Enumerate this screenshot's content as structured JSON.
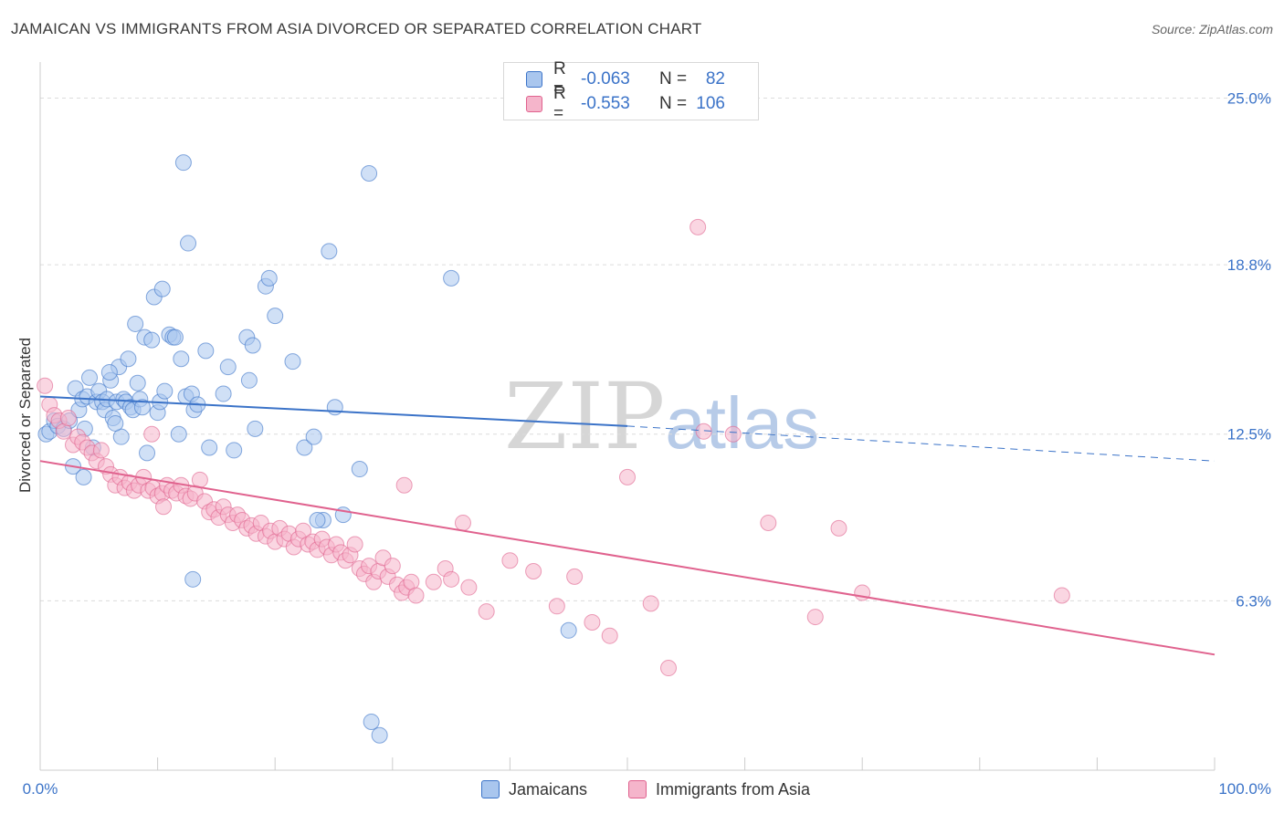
{
  "header": {
    "title": "JAMAICAN VS IMMIGRANTS FROM ASIA DIVORCED OR SEPARATED CORRELATION CHART",
    "source": "Source: ZipAtlas.com"
  },
  "watermark": {
    "zip": "ZIP",
    "atlas": "atlas"
  },
  "legend": {
    "rows": [
      {
        "r_label": "R =",
        "r_value": "-0.063",
        "n_label": "N =",
        "n_value": "82"
      },
      {
        "r_label": "R =",
        "r_value": "-0.553",
        "n_label": "N =",
        "n_value": "106"
      }
    ]
  },
  "bottom_legend": {
    "series1": "Jamaicans",
    "series2": "Immigrants from Asia"
  },
  "colors": {
    "blue": "#3b73c8",
    "blue_fill": "#a9c6ee",
    "pink": "#e0628e",
    "pink_fill": "#f5b5cb",
    "grid": "#dddddd"
  },
  "chart_data": {
    "type": "scatter",
    "title": "JAMAICAN VS IMMIGRANTS FROM ASIA DIVORCED OR SEPARATED CORRELATION CHART",
    "xlabel": "",
    "ylabel": "Divorced or Separated",
    "xlim": [
      0,
      100
    ],
    "ylim": [
      0,
      26.0
    ],
    "x_tick_labels": [
      "0.0%",
      "100.0%"
    ],
    "y_ticks": [
      6.3,
      12.5,
      18.8,
      25.0
    ],
    "y_tick_labels": [
      "6.3%",
      "12.5%",
      "18.8%",
      "25.0%"
    ],
    "grid": "horizontal dashed",
    "legend_position": "top-center",
    "series": [
      {
        "name": "Jamaicans",
        "color": "#3b73c8",
        "trend": {
          "x0": 0,
          "y0": 13.9,
          "x1": 50,
          "y1": 12.8,
          "x_end": 100,
          "y_end": 11.5
        },
        "points": [
          [
            0.5,
            12.5
          ],
          [
            0.8,
            12.6
          ],
          [
            1.2,
            13.0
          ],
          [
            1.5,
            12.8
          ],
          [
            2.0,
            12.7
          ],
          [
            2.5,
            13.0
          ],
          [
            2.8,
            11.3
          ],
          [
            3.0,
            14.2
          ],
          [
            3.3,
            13.4
          ],
          [
            3.6,
            13.8
          ],
          [
            3.7,
            10.9
          ],
          [
            4.0,
            13.9
          ],
          [
            4.2,
            14.6
          ],
          [
            4.5,
            12.0
          ],
          [
            4.8,
            13.7
          ],
          [
            5.0,
            14.1
          ],
          [
            5.3,
            13.7
          ],
          [
            5.5,
            13.4
          ],
          [
            5.7,
            13.8
          ],
          [
            6.0,
            14.5
          ],
          [
            6.2,
            13.1
          ],
          [
            6.5,
            13.7
          ],
          [
            6.7,
            15.0
          ],
          [
            6.9,
            12.4
          ],
          [
            7.1,
            13.8
          ],
          [
            7.3,
            13.7
          ],
          [
            7.5,
            15.3
          ],
          [
            7.7,
            13.5
          ],
          [
            7.9,
            13.4
          ],
          [
            8.1,
            16.6
          ],
          [
            8.3,
            14.4
          ],
          [
            8.5,
            13.8
          ],
          [
            8.7,
            13.5
          ],
          [
            8.9,
            16.1
          ],
          [
            9.1,
            11.8
          ],
          [
            9.5,
            16.0
          ],
          [
            9.7,
            17.6
          ],
          [
            10.0,
            13.3
          ],
          [
            10.2,
            13.7
          ],
          [
            10.4,
            17.9
          ],
          [
            10.6,
            14.1
          ],
          [
            11.0,
            16.2
          ],
          [
            11.3,
            16.1
          ],
          [
            11.8,
            12.5
          ],
          [
            12.0,
            15.3
          ],
          [
            12.4,
            13.9
          ],
          [
            12.6,
            19.6
          ],
          [
            12.9,
            14.0
          ],
          [
            13.1,
            13.4
          ],
          [
            13.4,
            13.6
          ],
          [
            14.1,
            15.6
          ],
          [
            14.4,
            12.0
          ],
          [
            15.6,
            14.0
          ],
          [
            16.0,
            15.0
          ],
          [
            16.5,
            11.9
          ],
          [
            17.6,
            16.1
          ],
          [
            17.8,
            14.5
          ],
          [
            18.1,
            15.8
          ],
          [
            18.3,
            12.7
          ],
          [
            19.2,
            18.0
          ],
          [
            19.5,
            18.3
          ],
          [
            20.0,
            16.9
          ],
          [
            21.5,
            15.2
          ],
          [
            22.5,
            12.0
          ],
          [
            23.3,
            12.4
          ],
          [
            24.1,
            9.3
          ],
          [
            24.6,
            19.3
          ],
          [
            25.1,
            13.5
          ],
          [
            23.6,
            9.3
          ],
          [
            25.8,
            9.5
          ],
          [
            27.2,
            11.2
          ],
          [
            28.2,
            1.8
          ],
          [
            28.9,
            1.3
          ],
          [
            12.2,
            22.6
          ],
          [
            28.0,
            22.2
          ],
          [
            35.0,
            18.3
          ],
          [
            13.0,
            7.1
          ],
          [
            11.5,
            16.1
          ],
          [
            45.0,
            5.2
          ],
          [
            3.8,
            12.7
          ],
          [
            5.9,
            14.8
          ],
          [
            6.4,
            12.9
          ]
        ]
      },
      {
        "name": "Immigrants from Asia",
        "color": "#e0628e",
        "trend": {
          "x0": 0,
          "y0": 11.5,
          "x1": 100,
          "y1": 4.3
        },
        "points": [
          [
            0.4,
            14.3
          ],
          [
            0.8,
            13.6
          ],
          [
            1.2,
            13.2
          ],
          [
            1.6,
            13.0
          ],
          [
            2.0,
            12.6
          ],
          [
            2.4,
            13.1
          ],
          [
            2.8,
            12.1
          ],
          [
            3.2,
            12.4
          ],
          [
            3.6,
            12.2
          ],
          [
            4.0,
            12.0
          ],
          [
            4.4,
            11.8
          ],
          [
            4.8,
            11.5
          ],
          [
            5.2,
            11.9
          ],
          [
            5.6,
            11.3
          ],
          [
            6.0,
            11.0
          ],
          [
            6.4,
            10.6
          ],
          [
            6.8,
            10.9
          ],
          [
            7.2,
            10.5
          ],
          [
            7.6,
            10.7
          ],
          [
            8.0,
            10.4
          ],
          [
            8.4,
            10.6
          ],
          [
            8.8,
            10.9
          ],
          [
            9.2,
            10.4
          ],
          [
            9.6,
            10.5
          ],
          [
            10.0,
            10.2
          ],
          [
            10.4,
            10.3
          ],
          [
            10.8,
            10.6
          ],
          [
            11.2,
            10.4
          ],
          [
            11.6,
            10.3
          ],
          [
            12.0,
            10.6
          ],
          [
            12.4,
            10.2
          ],
          [
            12.8,
            10.1
          ],
          [
            13.2,
            10.3
          ],
          [
            13.6,
            10.8
          ],
          [
            14.0,
            10.0
          ],
          [
            14.4,
            9.6
          ],
          [
            14.8,
            9.7
          ],
          [
            15.2,
            9.4
          ],
          [
            15.6,
            9.8
          ],
          [
            16.0,
            9.5
          ],
          [
            16.4,
            9.2
          ],
          [
            16.8,
            9.5
          ],
          [
            17.2,
            9.3
          ],
          [
            17.6,
            9.0
          ],
          [
            18.0,
            9.1
          ],
          [
            18.4,
            8.8
          ],
          [
            18.8,
            9.2
          ],
          [
            19.2,
            8.7
          ],
          [
            19.6,
            8.9
          ],
          [
            20.0,
            8.5
          ],
          [
            20.4,
            9.0
          ],
          [
            20.8,
            8.6
          ],
          [
            21.2,
            8.8
          ],
          [
            21.6,
            8.3
          ],
          [
            22.0,
            8.6
          ],
          [
            22.4,
            8.9
          ],
          [
            22.8,
            8.4
          ],
          [
            23.2,
            8.5
          ],
          [
            23.6,
            8.2
          ],
          [
            24.0,
            8.6
          ],
          [
            24.4,
            8.3
          ],
          [
            24.8,
            8.0
          ],
          [
            25.2,
            8.4
          ],
          [
            25.6,
            8.1
          ],
          [
            26.0,
            7.8
          ],
          [
            26.4,
            8.0
          ],
          [
            26.8,
            8.4
          ],
          [
            27.2,
            7.5
          ],
          [
            27.6,
            7.3
          ],
          [
            28.0,
            7.6
          ],
          [
            28.4,
            7.0
          ],
          [
            28.8,
            7.4
          ],
          [
            29.2,
            7.9
          ],
          [
            29.6,
            7.2
          ],
          [
            30.0,
            7.6
          ],
          [
            30.4,
            6.9
          ],
          [
            30.8,
            6.6
          ],
          [
            31.2,
            6.8
          ],
          [
            31.6,
            7.0
          ],
          [
            32.0,
            6.5
          ],
          [
            33.5,
            7.0
          ],
          [
            34.5,
            7.5
          ],
          [
            35.0,
            7.1
          ],
          [
            36.5,
            6.8
          ],
          [
            38.0,
            5.9
          ],
          [
            40.0,
            7.8
          ],
          [
            42.0,
            7.4
          ],
          [
            44.0,
            6.1
          ],
          [
            45.5,
            7.2
          ],
          [
            47.0,
            5.5
          ],
          [
            48.5,
            5.0
          ],
          [
            50.0,
            10.9
          ],
          [
            52.0,
            6.2
          ],
          [
            53.5,
            3.8
          ],
          [
            56.0,
            20.2
          ],
          [
            59.0,
            12.5
          ],
          [
            62.0,
            9.2
          ],
          [
            66.0,
            5.7
          ],
          [
            87.0,
            6.5
          ],
          [
            68.0,
            9.0
          ],
          [
            9.5,
            12.5
          ],
          [
            10.5,
            9.8
          ],
          [
            31.0,
            10.6
          ],
          [
            36.0,
            9.2
          ],
          [
            56.5,
            12.6
          ],
          [
            70.0,
            6.6
          ]
        ]
      }
    ]
  }
}
